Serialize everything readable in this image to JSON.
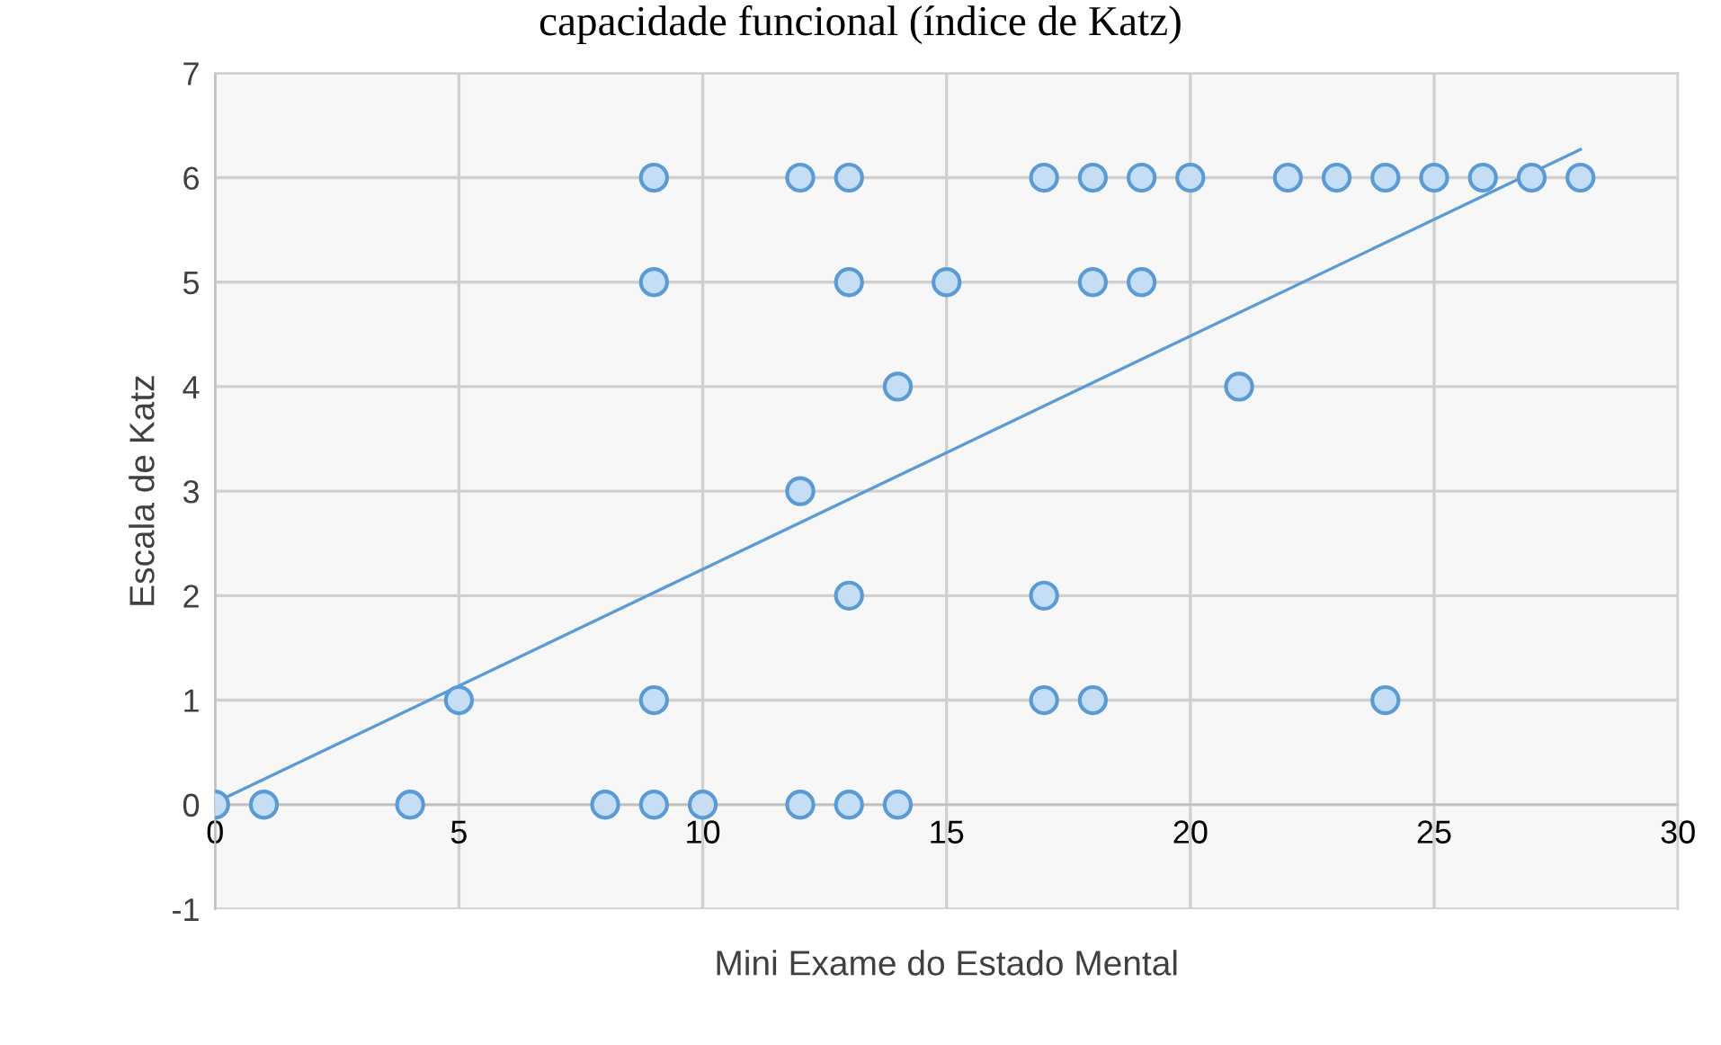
{
  "chart_data": {
    "type": "scatter",
    "title": "capacidade funcional (índice de Katz)",
    "xlabel": "Mini Exame do Estado Mental",
    "ylabel": "Escala de Katz",
    "series": [
      {
        "color": "#5b9bd5",
        "marker": "circle",
        "x": [
          9,
          12,
          13,
          17,
          18,
          19,
          20,
          22,
          23,
          24,
          25,
          26,
          27,
          28,
          9,
          13,
          15,
          18,
          19,
          14,
          21,
          12,
          13,
          17,
          5,
          9,
          17,
          18,
          24,
          0,
          1,
          4,
          8,
          9,
          10,
          12,
          13,
          14
        ],
        "values": [
          6,
          6,
          6,
          6,
          6,
          6,
          6,
          6,
          6,
          6,
          6,
          6,
          6,
          6,
          5,
          5,
          5,
          5,
          5,
          4,
          4,
          3,
          2,
          2,
          1,
          1,
          1,
          1,
          1,
          0,
          0,
          0,
          0,
          0,
          0,
          0,
          0,
          0
        ]
      },
      {
        "type": "line",
        "color": "#5b9bd5",
        "marker": "none",
        "line_style": "solid",
        "x": [
          0,
          28
        ],
        "values": [
          0.02,
          6.27
        ]
      }
    ],
    "xlim": [
      0,
      30
    ],
    "xticks": [
      0,
      5,
      10,
      15,
      20,
      25,
      30
    ],
    "ylim": [
      -1,
      7
    ],
    "yticks": [
      -1,
      0,
      1,
      2,
      3,
      4,
      5,
      6,
      7
    ],
    "grid": true,
    "legend": false
  }
}
